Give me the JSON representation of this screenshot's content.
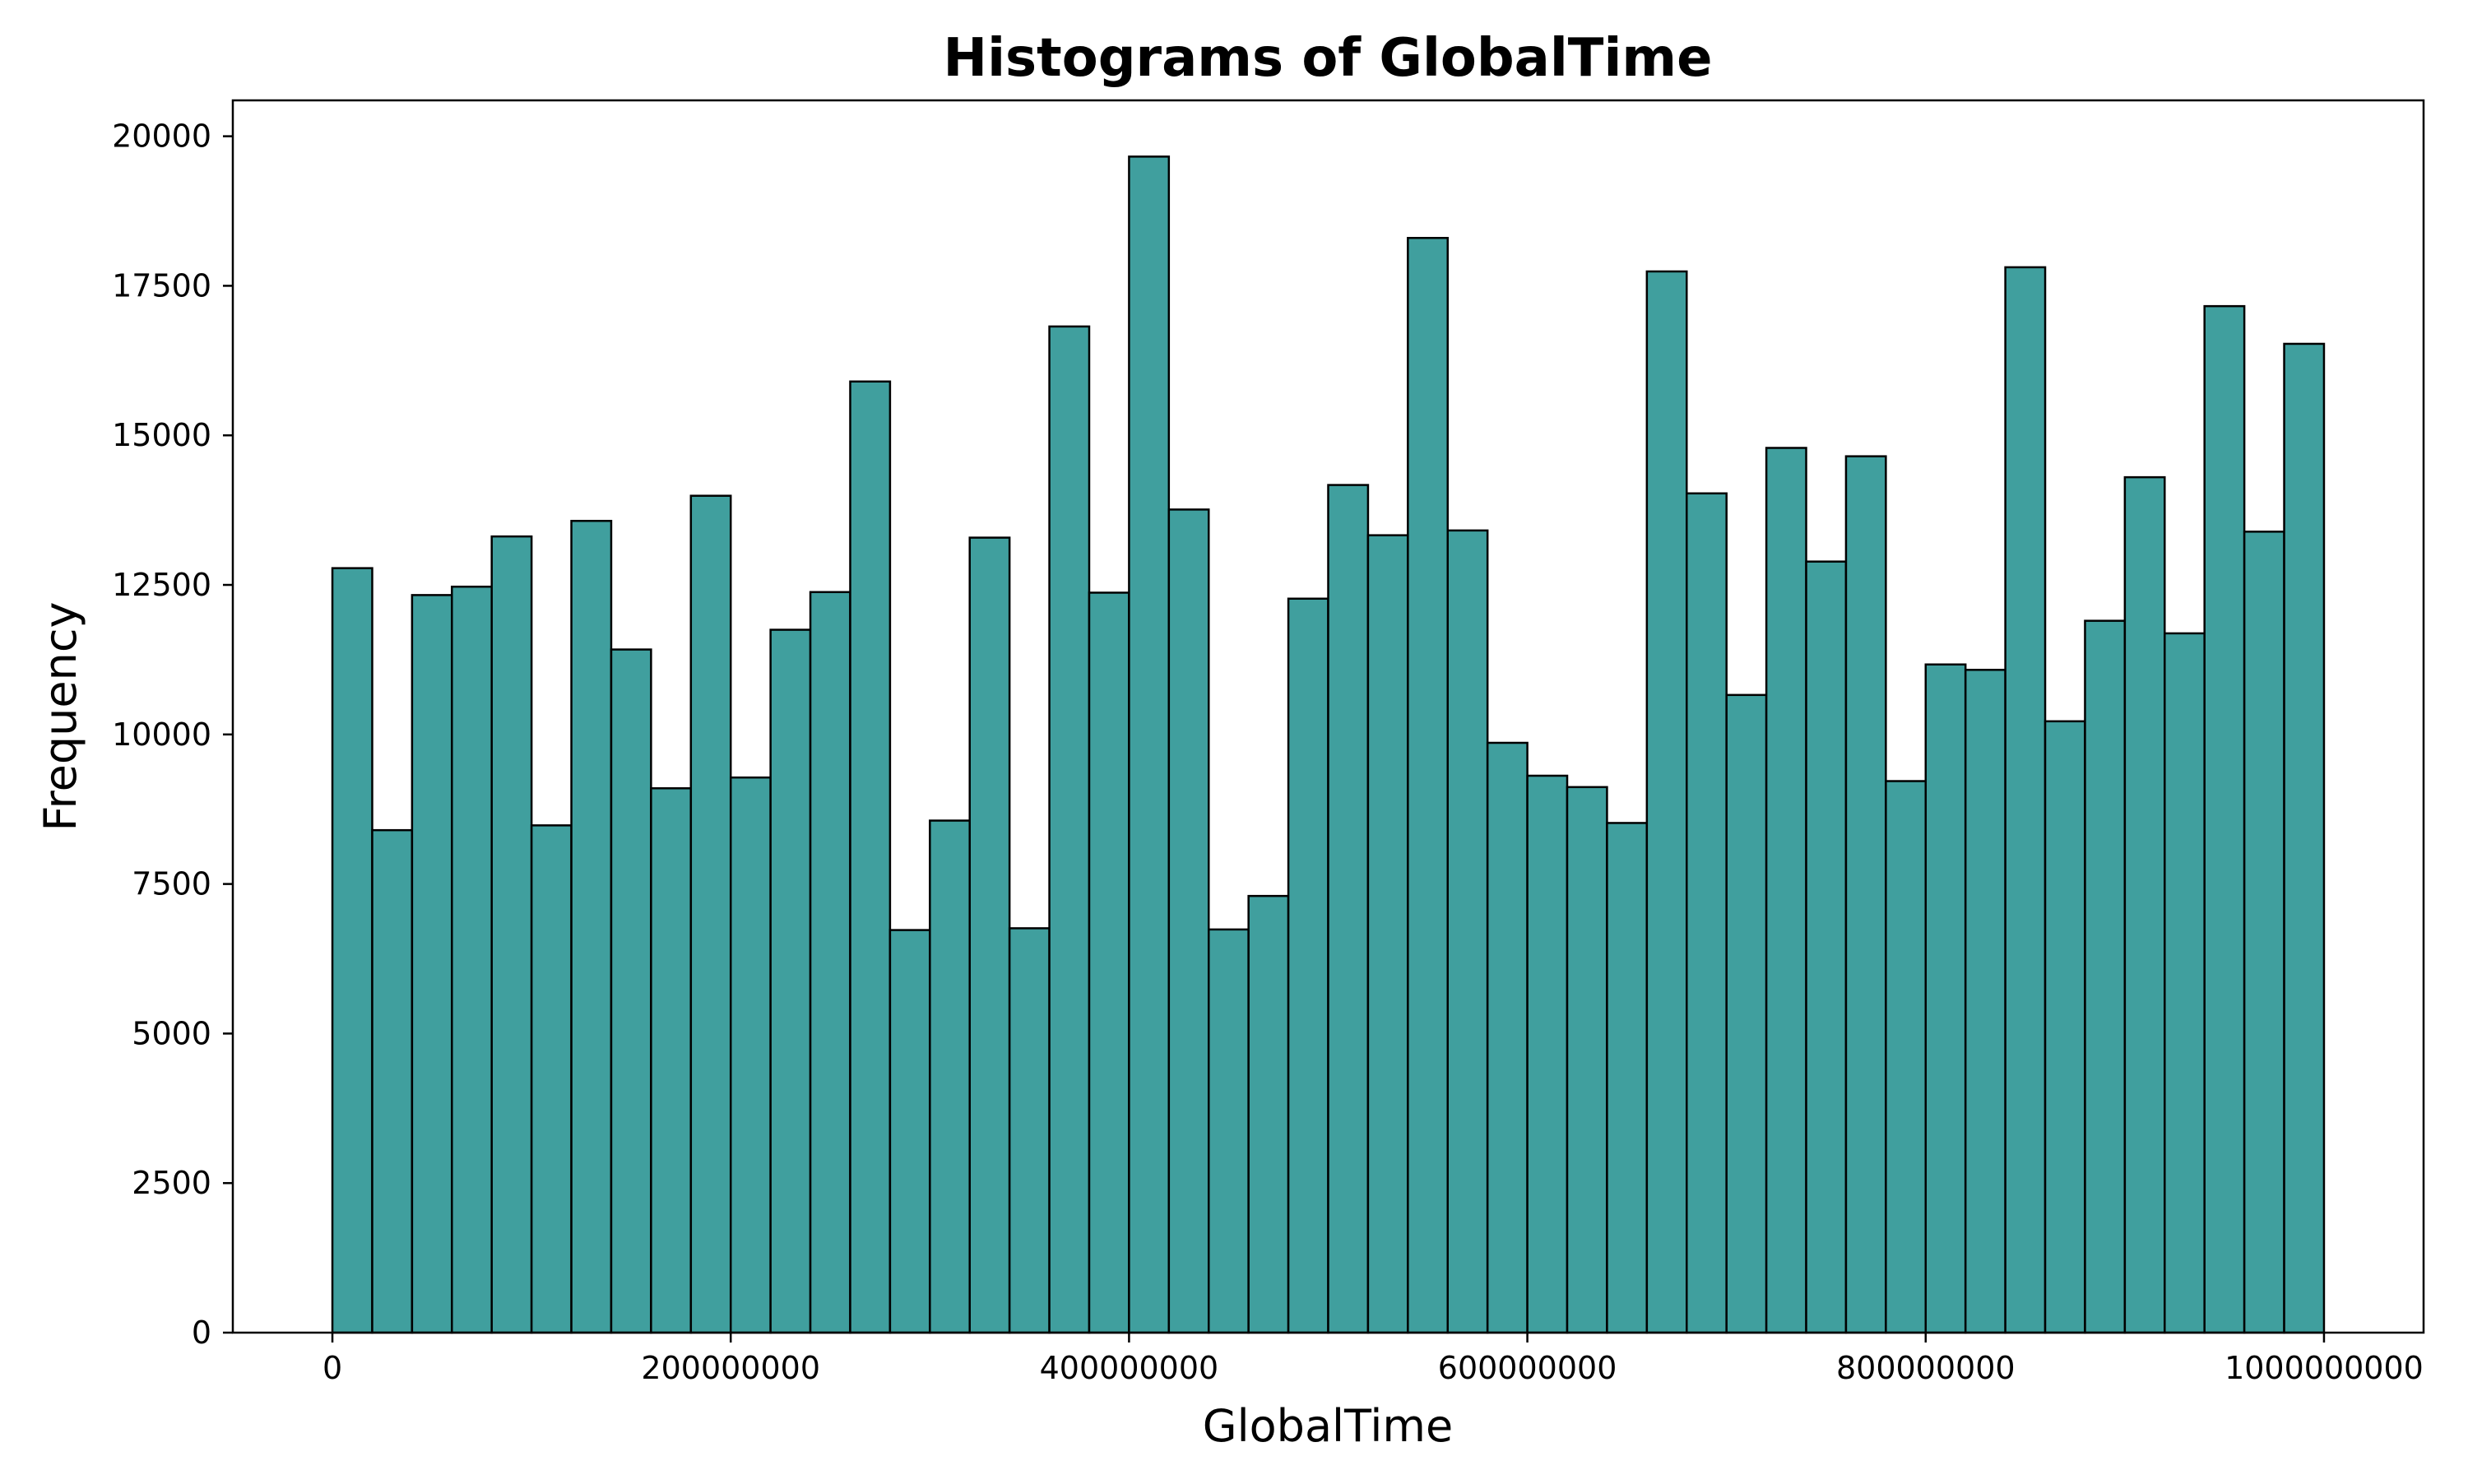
{
  "chart_data": {
    "type": "bar",
    "title": "Histograms of GlobalTime",
    "xlabel": "GlobalTime",
    "ylabel": "Frequency",
    "bin_start": 0,
    "bin_end": 1000000000,
    "bin_count": 50,
    "xlim": [
      -50000000,
      1050000000
    ],
    "ylim": [
      0,
      20600
    ],
    "x_ticks": [
      0,
      200000000,
      400000000,
      600000000,
      800000000,
      1000000000
    ],
    "x_tick_labels": [
      "0",
      "200000000",
      "400000000",
      "600000000",
      "800000000",
      "1000000000"
    ],
    "y_ticks": [
      0,
      2500,
      5000,
      7500,
      10000,
      12500,
      15000,
      17500,
      20000
    ],
    "y_tick_labels": [
      "0",
      "2500",
      "5000",
      "7500",
      "10000",
      "12500",
      "15000",
      "17500",
      "20000"
    ],
    "values": [
      12780,
      8400,
      12330,
      12470,
      13310,
      8480,
      13570,
      11420,
      9100,
      13990,
      9280,
      11750,
      12380,
      15900,
      6730,
      8560,
      13290,
      6760,
      16820,
      12370,
      19660,
      13760,
      6740,
      7300,
      12270,
      14170,
      13330,
      18300,
      13410,
      9860,
      9310,
      9120,
      8520,
      17740,
      14030,
      10660,
      14790,
      12890,
      14650,
      9220,
      11170,
      11080,
      17810,
      10220,
      11900,
      14300,
      11690,
      17160,
      13390,
      16530
    ],
    "bar_color": "#409F9E",
    "edge_color": "#000000",
    "grid": false
  }
}
